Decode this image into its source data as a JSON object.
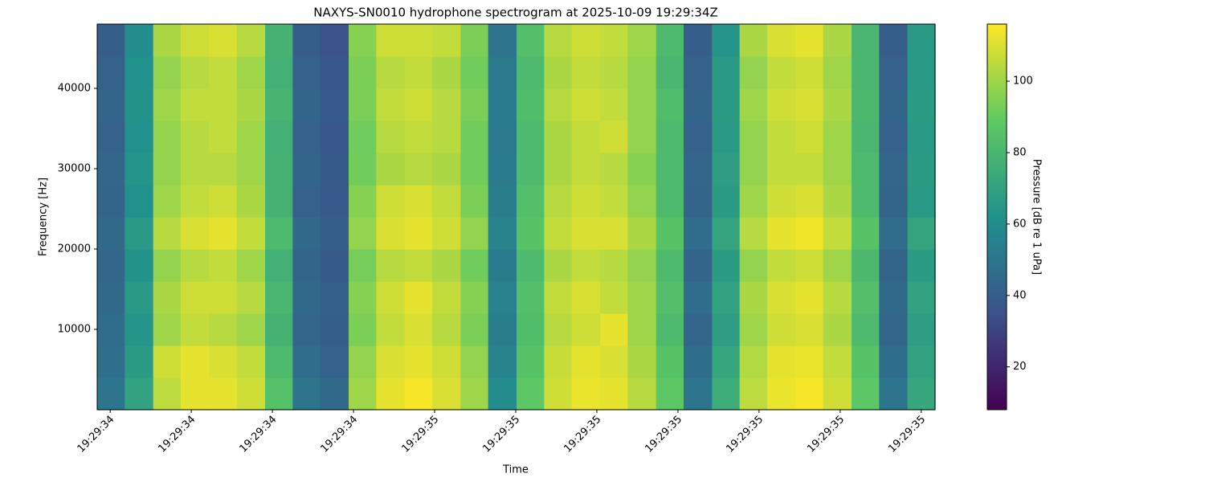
{
  "chart_data": {
    "type": "heatmap",
    "title": "NAXYS-SN0010 hydrophone spectrogram at 2025-10-09 19:29:34Z",
    "x_label": "Time",
    "y_label": "Frequency [Hz]",
    "colorbar_label": "Pressure [dB re 1 uPa]",
    "colormap": [
      "#440154",
      "#3b528b",
      "#21918c",
      "#5ec962",
      "#fde725"
    ],
    "xlim": [
      34.584,
      35.617
    ],
    "ylim": [
      0,
      48000
    ],
    "clim": [
      8,
      116
    ],
    "xticks": [
      {
        "value": 34.6,
        "label": "19:29:34"
      },
      {
        "value": 34.7,
        "label": "19:29:34"
      },
      {
        "value": 34.8,
        "label": "19:29:34"
      },
      {
        "value": 34.9,
        "label": "19:29:34"
      },
      {
        "value": 35.0,
        "label": "19:29:35"
      },
      {
        "value": 35.1,
        "label": "19:29:35"
      },
      {
        "value": 35.2,
        "label": "19:29:35"
      },
      {
        "value": 35.3,
        "label": "19:29:35"
      },
      {
        "value": 35.4,
        "label": "19:29:35"
      },
      {
        "value": 35.5,
        "label": "19:29:35"
      },
      {
        "value": 35.6,
        "label": "19:29:35"
      }
    ],
    "yticks": [
      10000,
      20000,
      30000,
      40000
    ],
    "cticks": [
      20,
      40,
      60,
      80,
      100
    ],
    "time_bins": [
      34.584,
      34.618,
      34.653,
      34.687,
      34.722,
      34.756,
      34.791,
      34.825,
      34.859,
      34.894,
      34.928,
      34.963,
      34.997,
      35.032,
      35.066,
      35.101,
      35.135,
      35.169,
      35.204,
      35.238,
      35.273,
      35.307,
      35.342,
      35.376,
      35.41,
      35.445,
      35.479,
      35.514,
      35.548,
      35.583,
      35.617
    ],
    "freq_bins": [
      0,
      4000,
      8000,
      12000,
      16000,
      20000,
      24000,
      28000,
      32000,
      36000,
      40000,
      44000,
      48000
    ],
    "z": [
      [
        50,
        70,
        105,
        112,
        112,
        108,
        85,
        50,
        45,
        100,
        112,
        115,
        110,
        100,
        60,
        88,
        108,
        113,
        112,
        104,
        88,
        50,
        75,
        105,
        113,
        115,
        108,
        88,
        50,
        72
      ],
      [
        48,
        67,
        108,
        112,
        110,
        106,
        82,
        46,
        42,
        98,
        110,
        112,
        108,
        98,
        56,
        86,
        107,
        112,
        110,
        102,
        86,
        47,
        72,
        103,
        112,
        113,
        106,
        86,
        47,
        70
      ],
      [
        46,
        64,
        100,
        106,
        104,
        100,
        78,
        44,
        40,
        94,
        106,
        110,
        104,
        94,
        54,
        83,
        104,
        108,
        112,
        100,
        82,
        44,
        68,
        100,
        108,
        110,
        102,
        82,
        44,
        68
      ],
      [
        45,
        66,
        102,
        108,
        108,
        104,
        80,
        45,
        41,
        96,
        108,
        112,
        106,
        96,
        55,
        84,
        106,
        110,
        106,
        100,
        84,
        46,
        70,
        102,
        110,
        112,
        104,
        84,
        45,
        70
      ],
      [
        44,
        63,
        98,
        104,
        106,
        100,
        77,
        43,
        39,
        93,
        104,
        106,
        102,
        92,
        53,
        82,
        102,
        106,
        104,
        98,
        82,
        43,
        67,
        98,
        106,
        108,
        100,
        81,
        43,
        67
      ],
      [
        45,
        66,
        104,
        110,
        112,
        106,
        82,
        45,
        40,
        98,
        110,
        112,
        108,
        98,
        56,
        86,
        106,
        110,
        110,
        102,
        86,
        46,
        71,
        104,
        112,
        114,
        106,
        86,
        46,
        71
      ],
      [
        43,
        62,
        100,
        106,
        108,
        102,
        78,
        42,
        38,
        96,
        108,
        110,
        106,
        94,
        54,
        84,
        104,
        108,
        106,
        98,
        82,
        43,
        67,
        100,
        108,
        110,
        102,
        82,
        43,
        66
      ],
      [
        44,
        64,
        98,
        104,
        104,
        100,
        78,
        43,
        39,
        92,
        102,
        104,
        102,
        92,
        53,
        82,
        102,
        106,
        104,
        96,
        82,
        44,
        68,
        98,
        106,
        106,
        100,
        82,
        44,
        67
      ],
      [
        42,
        62,
        98,
        104,
        106,
        100,
        77,
        42,
        37,
        92,
        104,
        106,
        104,
        92,
        52,
        82,
        102,
        106,
        108,
        98,
        82,
        42,
        66,
        98,
        106,
        108,
        100,
        80,
        42,
        66
      ],
      [
        43,
        63,
        100,
        106,
        106,
        102,
        79,
        43,
        38,
        94,
        106,
        108,
        104,
        94,
        53,
        83,
        104,
        108,
        106,
        98,
        83,
        43,
        67,
        100,
        108,
        110,
        102,
        81,
        43,
        67
      ],
      [
        42,
        62,
        98,
        104,
        106,
        100,
        77,
        42,
        37,
        94,
        104,
        106,
        102,
        92,
        52,
        82,
        102,
        106,
        104,
        98,
        80,
        42,
        66,
        98,
        106,
        108,
        100,
        80,
        42,
        66
      ],
      [
        40,
        60,
        102,
        108,
        110,
        104,
        78,
        40,
        36,
        96,
        108,
        108,
        106,
        94,
        50,
        84,
        104,
        108,
        106,
        100,
        82,
        40,
        64,
        102,
        110,
        112,
        102,
        80,
        40,
        66
      ]
    ]
  }
}
